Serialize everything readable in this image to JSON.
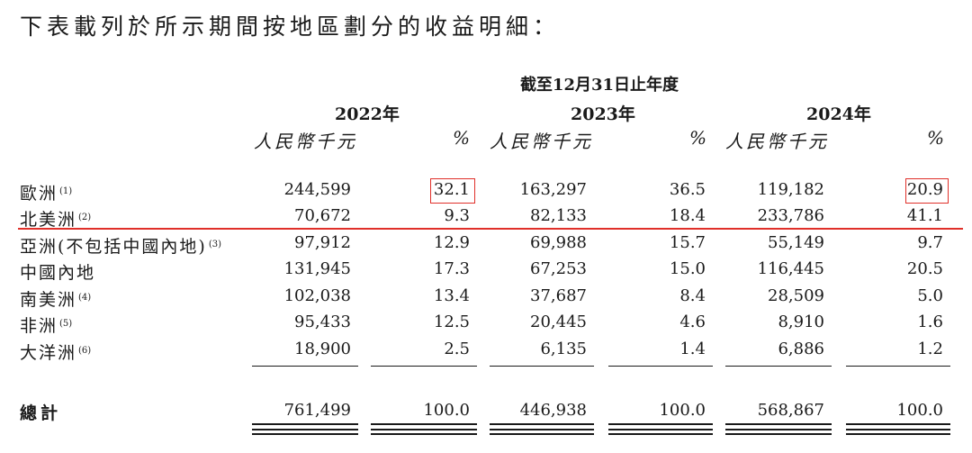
{
  "intro": "下表載列於所示期間按地區劃分的收益明細：",
  "period_header": "截至12月31日止年度",
  "years": [
    "2022年",
    "2023年",
    "2024年"
  ],
  "unit_label": "人民幣千元",
  "pct_label": "%",
  "rows": [
    {
      "label": "歐洲",
      "note": "(1)",
      "values": [
        "244,599",
        "32.1",
        "163,297",
        "36.5",
        "119,182",
        "20.9"
      ]
    },
    {
      "label": "北美洲",
      "note": "(2)",
      "values": [
        "70,672",
        "9.3",
        "82,133",
        "18.4",
        "233,786",
        "41.1"
      ]
    },
    {
      "label": "亞洲(不包括中國內地)",
      "note": "(3)",
      "values": [
        "97,912",
        "12.9",
        "69,988",
        "15.7",
        "55,149",
        "9.7"
      ]
    },
    {
      "label": "中國內地",
      "note": "",
      "values": [
        "131,945",
        "17.3",
        "67,253",
        "15.0",
        "116,445",
        "20.5"
      ]
    },
    {
      "label": "南美洲",
      "note": "(4)",
      "values": [
        "102,038",
        "13.4",
        "37,687",
        "8.4",
        "28,509",
        "5.0"
      ]
    },
    {
      "label": "非洲",
      "note": "(5)",
      "values": [
        "95,433",
        "12.5",
        "20,445",
        "4.6",
        "8,910",
        "1.6"
      ]
    },
    {
      "label": "大洋洲",
      "note": "(6)",
      "values": [
        "18,900",
        "2.5",
        "6,135",
        "1.4",
        "6,886",
        "1.2"
      ]
    }
  ],
  "total": {
    "label": "總計",
    "values": [
      "761,499",
      "100.0",
      "446,938",
      "100.0",
      "568,867",
      "100.0"
    ]
  },
  "highlight_color": "#e0302a"
}
